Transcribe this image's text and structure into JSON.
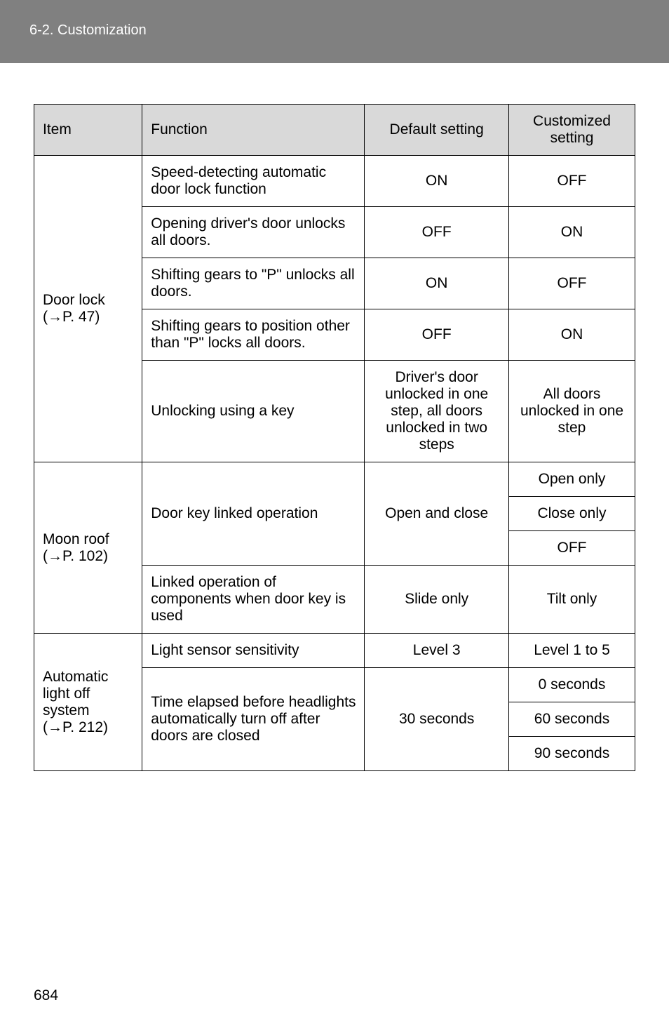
{
  "header": {
    "breadcrumb": "6-2. Customization"
  },
  "table": {
    "headers": {
      "item": "Item",
      "function": "Function",
      "default": "Default setting",
      "customized": "Customized setting"
    },
    "door_lock": {
      "item": "Door lock\n(→P. 47)",
      "rows": [
        {
          "func": "Speed-detecting automatic door lock function",
          "def": "ON",
          "cust": "OFF"
        },
        {
          "func": "Opening driver's door unlocks all doors.",
          "def": "OFF",
          "cust": "ON"
        },
        {
          "func": "Shifting gears to \"P\" unlocks all doors.",
          "def": "ON",
          "cust": "OFF"
        },
        {
          "func": "Shifting gears to position other than \"P\" locks all doors.",
          "def": "OFF",
          "cust": "ON"
        },
        {
          "func": "Unlocking using a key",
          "def": "Driver's door unlocked in one step, all doors unlocked in two steps",
          "cust": "All doors unlocked in one step"
        }
      ]
    },
    "moon_roof": {
      "item": "Moon roof\n(→P. 102)",
      "row1": {
        "func": "Door key linked operation",
        "def": "Open and close",
        "cust": [
          "Open only",
          "Close only",
          "OFF"
        ]
      },
      "row2": {
        "func": "Linked operation of components when door key is used",
        "def": "Slide only",
        "cust": "Tilt only"
      }
    },
    "auto_light": {
      "item": "Automatic light off system\n(→P. 212)",
      "row1": {
        "func": "Light sensor sensitivity",
        "def": "Level 3",
        "cust": "Level 1 to 5"
      },
      "row2": {
        "func": "Time elapsed before headlights automatically turn off after doors are closed",
        "def": "30 seconds",
        "cust": [
          "0 seconds",
          "60 seconds",
          "90 seconds"
        ]
      }
    }
  },
  "page_number": "684"
}
